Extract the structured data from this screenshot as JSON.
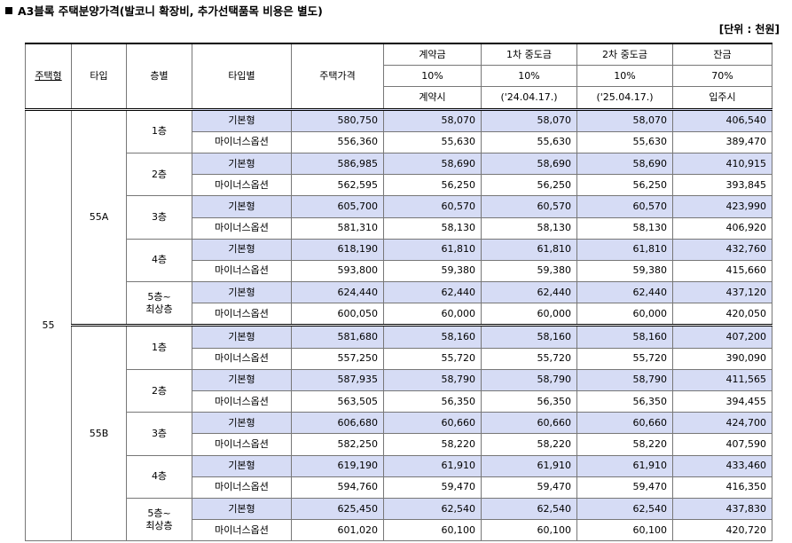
{
  "title": "A3블록 주택분양가격(발코니 확장비, 추가선택품목 비용은 별도)",
  "unit": "[단위 : 천원]",
  "headers": {
    "house_type": "주택형",
    "type": "타입",
    "floor": "층별",
    "type_detail": "타입별",
    "price": "주택가격",
    "contract": {
      "label": "계약금",
      "pct": "10%",
      "when": "계약시"
    },
    "mid1": {
      "label": "1차 중도금",
      "pct": "10%",
      "when": "('24.04.17.)"
    },
    "mid2": {
      "label": "2차 중도금",
      "pct": "10%",
      "when": "('25.04.17.)"
    },
    "balance": {
      "label": "잔금",
      "pct": "70%",
      "when": "입주시"
    }
  },
  "house_type_value": "55",
  "groups": [
    {
      "type": "55A",
      "floors": [
        {
          "floor": "1층",
          "rows": [
            {
              "kind": "기본형",
              "price": "580,750",
              "contract": "58,070",
              "mid1": "58,070",
              "mid2": "58,070",
              "balance": "406,540"
            },
            {
              "kind": "마이너스옵션",
              "price": "556,360",
              "contract": "55,630",
              "mid1": "55,630",
              "mid2": "55,630",
              "balance": "389,470"
            }
          ]
        },
        {
          "floor": "2층",
          "rows": [
            {
              "kind": "기본형",
              "price": "586,985",
              "contract": "58,690",
              "mid1": "58,690",
              "mid2": "58,690",
              "balance": "410,915"
            },
            {
              "kind": "마이너스옵션",
              "price": "562,595",
              "contract": "56,250",
              "mid1": "56,250",
              "mid2": "56,250",
              "balance": "393,845"
            }
          ]
        },
        {
          "floor": "3층",
          "rows": [
            {
              "kind": "기본형",
              "price": "605,700",
              "contract": "60,570",
              "mid1": "60,570",
              "mid2": "60,570",
              "balance": "423,990"
            },
            {
              "kind": "마이너스옵션",
              "price": "581,310",
              "contract": "58,130",
              "mid1": "58,130",
              "mid2": "58,130",
              "balance": "406,920"
            }
          ]
        },
        {
          "floor": "4층",
          "rows": [
            {
              "kind": "기본형",
              "price": "618,190",
              "contract": "61,810",
              "mid1": "61,810",
              "mid2": "61,810",
              "balance": "432,760"
            },
            {
              "kind": "마이너스옵션",
              "price": "593,800",
              "contract": "59,380",
              "mid1": "59,380",
              "mid2": "59,380",
              "balance": "415,660"
            }
          ]
        },
        {
          "floor": "5층~\n최상층",
          "rows": [
            {
              "kind": "기본형",
              "price": "624,440",
              "contract": "62,440",
              "mid1": "62,440",
              "mid2": "62,440",
              "balance": "437,120"
            },
            {
              "kind": "마이너스옵션",
              "price": "600,050",
              "contract": "60,000",
              "mid1": "60,000",
              "mid2": "60,000",
              "balance": "420,050"
            }
          ]
        }
      ]
    },
    {
      "type": "55B",
      "floors": [
        {
          "floor": "1층",
          "rows": [
            {
              "kind": "기본형",
              "price": "581,680",
              "contract": "58,160",
              "mid1": "58,160",
              "mid2": "58,160",
              "balance": "407,200"
            },
            {
              "kind": "마이너스옵션",
              "price": "557,250",
              "contract": "55,720",
              "mid1": "55,720",
              "mid2": "55,720",
              "balance": "390,090"
            }
          ]
        },
        {
          "floor": "2층",
          "rows": [
            {
              "kind": "기본형",
              "price": "587,935",
              "contract": "58,790",
              "mid1": "58,790",
              "mid2": "58,790",
              "balance": "411,565"
            },
            {
              "kind": "마이너스옵션",
              "price": "563,505",
              "contract": "56,350",
              "mid1": "56,350",
              "mid2": "56,350",
              "balance": "394,455"
            }
          ]
        },
        {
          "floor": "3층",
          "rows": [
            {
              "kind": "기본형",
              "price": "606,680",
              "contract": "60,660",
              "mid1": "60,660",
              "mid2": "60,660",
              "balance": "424,700"
            },
            {
              "kind": "마이너스옵션",
              "price": "582,250",
              "contract": "58,220",
              "mid1": "58,220",
              "mid2": "58,220",
              "balance": "407,590"
            }
          ]
        },
        {
          "floor": "4층",
          "rows": [
            {
              "kind": "기본형",
              "price": "619,190",
              "contract": "61,910",
              "mid1": "61,910",
              "mid2": "61,910",
              "balance": "433,460"
            },
            {
              "kind": "마이너스옵션",
              "price": "594,760",
              "contract": "59,470",
              "mid1": "59,470",
              "mid2": "59,470",
              "balance": "416,350"
            }
          ]
        },
        {
          "floor": "5층~\n최상층",
          "rows": [
            {
              "kind": "기본형",
              "price": "625,450",
              "contract": "62,540",
              "mid1": "62,540",
              "mid2": "62,540",
              "balance": "437,830"
            },
            {
              "kind": "마이너스옵션",
              "price": "601,020",
              "contract": "60,100",
              "mid1": "60,100",
              "mid2": "60,100",
              "balance": "420,720"
            }
          ]
        }
      ]
    }
  ],
  "colors": {
    "highlight": "#d6dcf5"
  }
}
